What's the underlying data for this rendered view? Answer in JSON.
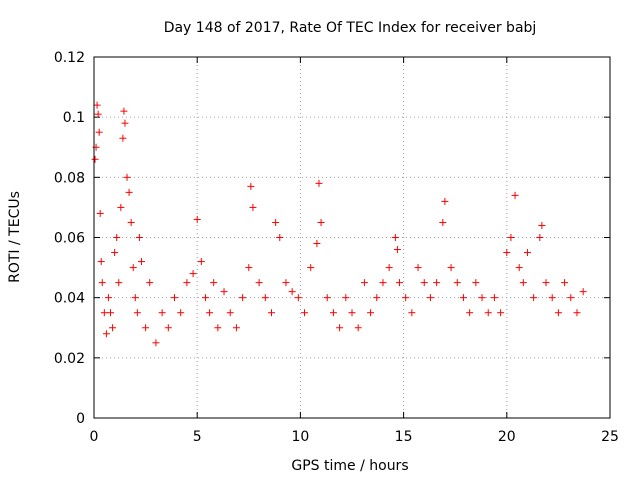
{
  "chart_data": {
    "type": "scatter",
    "title": "Day 148 of 2017, Rate Of TEC Index for receiver babj",
    "xlabel": "GPS time / hours",
    "ylabel": "ROTI / TECUs",
    "xlim": [
      0,
      25
    ],
    "ylim": [
      0,
      0.12
    ],
    "x_ticks": [
      0,
      5,
      10,
      15,
      20,
      25
    ],
    "x_tick_labels": [
      "0",
      "5",
      "10",
      "15",
      "20",
      "25"
    ],
    "y_ticks": [
      0,
      0.02,
      0.04,
      0.06,
      0.08,
      0.1,
      0.12
    ],
    "y_tick_labels": [
      "0",
      "0.02",
      "0.04",
      "0.06",
      "0.08",
      "0.1",
      "0.12"
    ],
    "grid": true,
    "marker": "+",
    "series_color": "#ff0000",
    "series": [
      {
        "name": "ROTI",
        "x": [
          0.05,
          0.1,
          0.15,
          0.2,
          0.25,
          0.3,
          0.35,
          0.4,
          0.5,
          0.6,
          0.7,
          0.8,
          0.9,
          1.0,
          1.1,
          1.2,
          1.3,
          1.4,
          1.45,
          1.5,
          1.6,
          1.7,
          1.8,
          1.9,
          2.0,
          2.1,
          2.2,
          2.3,
          2.5,
          2.7,
          3.0,
          3.3,
          3.6,
          3.9,
          4.2,
          4.5,
          4.8,
          5.0,
          5.2,
          5.4,
          5.6,
          5.8,
          6.0,
          6.3,
          6.6,
          6.9,
          7.2,
          7.5,
          7.6,
          7.7,
          8.0,
          8.3,
          8.6,
          8.8,
          9.0,
          9.3,
          9.6,
          9.9,
          10.2,
          10.5,
          10.8,
          10.9,
          11.0,
          11.3,
          11.6,
          11.9,
          12.2,
          12.5,
          12.8,
          13.1,
          13.4,
          13.7,
          14.0,
          14.3,
          14.6,
          14.7,
          14.8,
          15.1,
          15.4,
          15.7,
          16.0,
          16.3,
          16.6,
          16.9,
          17.0,
          17.3,
          17.6,
          17.9,
          18.2,
          18.5,
          18.8,
          19.1,
          19.4,
          19.7,
          20.0,
          20.2,
          20.4,
          20.6,
          20.8,
          21.0,
          21.3,
          21.6,
          21.7,
          21.9,
          22.2,
          22.5,
          22.8,
          23.1,
          23.4,
          23.7
        ],
        "y": [
          0.086,
          0.09,
          0.104,
          0.101,
          0.095,
          0.068,
          0.052,
          0.045,
          0.035,
          0.028,
          0.04,
          0.035,
          0.03,
          0.055,
          0.06,
          0.045,
          0.07,
          0.093,
          0.102,
          0.098,
          0.08,
          0.075,
          0.065,
          0.05,
          0.04,
          0.035,
          0.06,
          0.052,
          0.03,
          0.045,
          0.025,
          0.035,
          0.03,
          0.04,
          0.035,
          0.045,
          0.048,
          0.066,
          0.052,
          0.04,
          0.035,
          0.045,
          0.03,
          0.042,
          0.035,
          0.03,
          0.04,
          0.05,
          0.077,
          0.07,
          0.045,
          0.04,
          0.035,
          0.065,
          0.06,
          0.045,
          0.042,
          0.04,
          0.035,
          0.05,
          0.058,
          0.078,
          0.065,
          0.04,
          0.035,
          0.03,
          0.04,
          0.035,
          0.03,
          0.045,
          0.035,
          0.04,
          0.045,
          0.05,
          0.06,
          0.056,
          0.045,
          0.04,
          0.035,
          0.05,
          0.045,
          0.04,
          0.045,
          0.065,
          0.072,
          0.05,
          0.045,
          0.04,
          0.035,
          0.045,
          0.04,
          0.035,
          0.04,
          0.035,
          0.055,
          0.06,
          0.074,
          0.05,
          0.045,
          0.055,
          0.04,
          0.06,
          0.064,
          0.045,
          0.04,
          0.035,
          0.045,
          0.04,
          0.035,
          0.042
        ]
      }
    ]
  }
}
